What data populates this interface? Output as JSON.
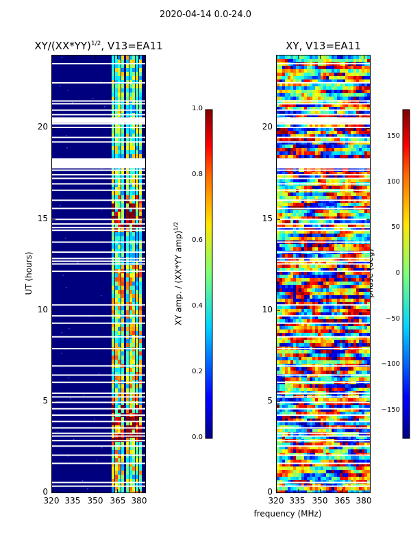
{
  "chart_data": {
    "suptitle": "2020-04-14 0.0-24.0",
    "xlabel": "frequency (MHz)",
    "panels": [
      {
        "type": "heatmap",
        "title_main": "XY/(XX*YY)",
        "title_sup": "1/2",
        "title_tail": ", V13=EA11",
        "ylabel": "UT (hours)",
        "ylim": [
          0,
          24
        ],
        "yticks": [
          "0",
          "5",
          "10",
          "15",
          "20"
        ],
        "xlim": [
          320,
          384
        ],
        "xticks": [
          "320",
          "335",
          "350",
          "365",
          "380"
        ],
        "colorbar": {
          "label_main": "XY amp. / (XX*YY amp)",
          "label_sup": "1/2",
          "range": [
            0.0,
            1.0
          ],
          "ticks": [
            "0.0",
            "0.2",
            "0.4",
            "0.6",
            "0.8",
            "1.0"
          ]
        }
      },
      {
        "type": "heatmap",
        "title": "XY, V13=EA11",
        "ylim": [
          0,
          24
        ],
        "yticks": [
          "0",
          "5",
          "10",
          "15",
          "20"
        ],
        "xlim": [
          320,
          384
        ],
        "xticks": [
          "320",
          "335",
          "350",
          "365",
          "380"
        ],
        "colorbar": {
          "label": "phase (deg)",
          "range": [
            -180,
            180
          ],
          "ticks": [
            "−150",
            "−100",
            "−50",
            "0",
            "50",
            "100",
            "150"
          ]
        }
      }
    ],
    "flagged_hours": [
      0.35,
      0.55,
      1.6,
      2.05,
      2.55,
      2.85,
      3.1,
      3.25,
      3.55,
      3.9,
      4.25,
      4.6,
      4.95,
      5.25,
      5.45,
      6.05,
      6.45,
      6.95,
      7.9,
      8.55,
      9.3,
      9.7,
      10.3,
      12.15,
      12.55,
      12.7,
      12.85,
      13.2,
      13.75,
      14.4,
      14.55,
      14.75,
      15.0,
      15.6,
      16.05,
      16.6,
      16.95,
      17.25,
      17.45,
      17.7,
      19.25,
      19.5,
      20.05,
      20.25,
      20.75,
      21.0,
      21.35,
      21.5,
      22.5,
      23.55
    ],
    "flagged_band_hours": [
      [
        17.8,
        18.35
      ],
      [
        20.3,
        20.6
      ]
    ],
    "amp_regimes": [
      {
        "hours": [
          0,
          3.0
        ],
        "level": 0.55
      },
      {
        "hours": [
          3.0,
          5.0
        ],
        "level": 0.85
      },
      {
        "hours": [
          5.0,
          12.5
        ],
        "level": 0.55
      },
      {
        "hours": [
          12.5,
          14.5
        ],
        "level": 0.35
      },
      {
        "hours": [
          14.5,
          16.5
        ],
        "level": 0.85
      },
      {
        "hours": [
          16.5,
          24
        ],
        "level": 0.45
      }
    ]
  }
}
